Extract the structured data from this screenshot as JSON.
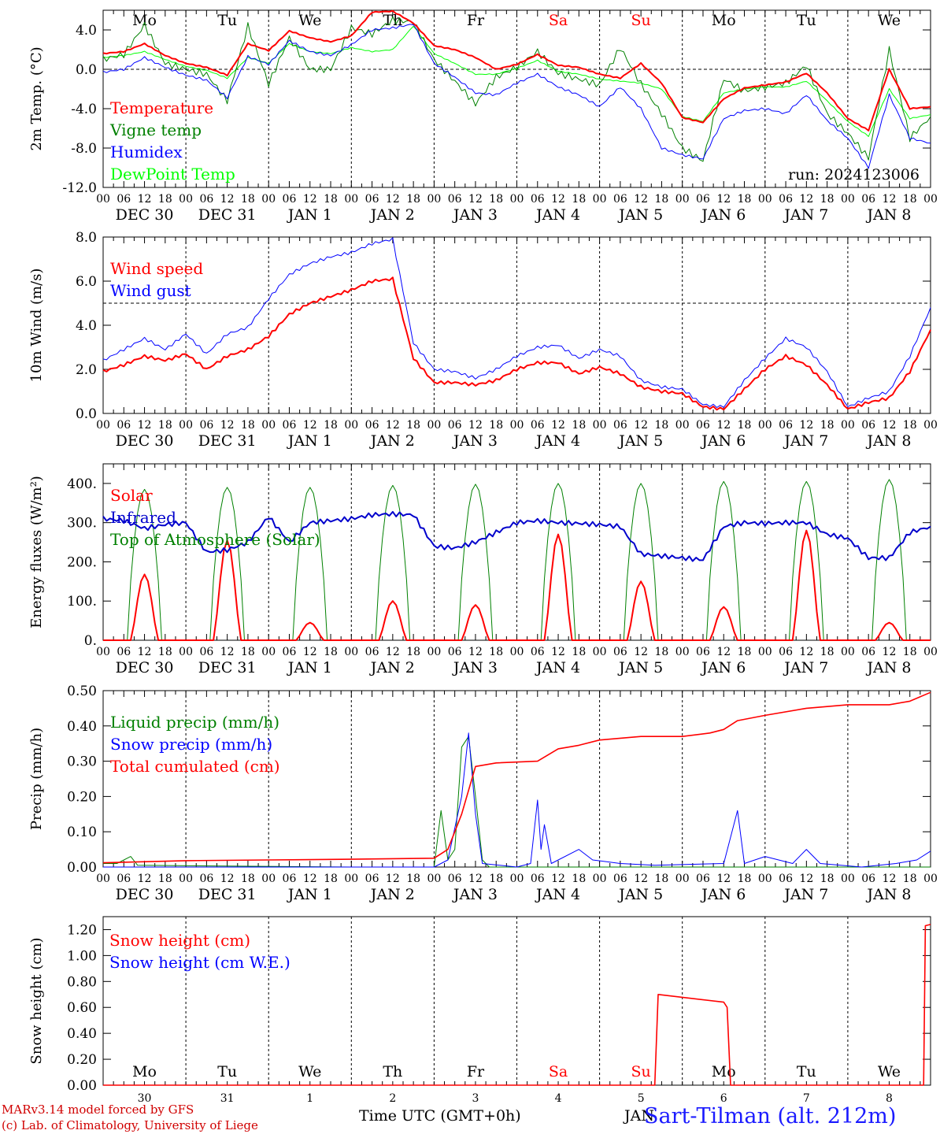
{
  "chart_data": [
    {
      "type": "line",
      "ylabel": "2m Temp. (°C)",
      "ylim": [
        -12,
        6
      ],
      "yticks": [
        4.0,
        0.0,
        -4.0,
        -8.0,
        -12.0
      ],
      "ytick_labels": [
        "4.0",
        "0.0",
        "-4.0",
        "-8.0",
        "-12.0"
      ],
      "ref_line": 0,
      "day_names": [
        "Mo",
        "Tu",
        "We",
        "Th",
        "Fr",
        "Sa",
        "Su",
        "Mo",
        "Tu",
        "We"
      ],
      "day_name_colors": [
        "#000000",
        "#000000",
        "#000000",
        "#000000",
        "#000000",
        "#ff0000",
        "#ff0000",
        "#000000",
        "#000000",
        "#000000"
      ],
      "date_labels": [
        "DEC 30",
        "DEC 31",
        "JAN  1",
        "JAN  2",
        "JAN  3",
        "JAN  4",
        "JAN  5",
        "JAN  6",
        "JAN  7",
        "JAN  8"
      ],
      "run_label": "run: 2024123006",
      "x_hours": [
        0,
        6,
        12,
        18,
        24,
        30,
        36,
        42,
        48,
        54,
        60,
        66,
        72,
        78,
        84,
        90,
        96,
        102,
        108,
        114,
        120,
        126,
        132,
        138,
        144,
        150,
        156,
        162,
        168,
        174,
        180,
        186,
        192,
        198,
        204,
        210,
        216,
        222,
        228,
        234,
        240
      ],
      "series": [
        {
          "name": "Temperature",
          "color": "#ff0000",
          "width": 2,
          "values": [
            1.6,
            1.8,
            2.6,
            1.4,
            0.6,
            0.2,
            -0.6,
            2.6,
            1.9,
            3.9,
            3.2,
            2.8,
            3.4,
            5.8,
            5.9,
            4.7,
            2.4,
            2.0,
            1.2,
            0.0,
            0.5,
            1.5,
            0.4,
            0.2,
            -0.5,
            -0.9,
            0.6,
            -1.4,
            -4.9,
            -5.4,
            -3.0,
            -1.9,
            -1.6,
            -1.3,
            -0.4,
            -2.4,
            -5.0,
            -6.2,
            0.0,
            -4.0,
            -3.8
          ]
        },
        {
          "name": "Vigne temp",
          "color": "#008000",
          "width": 1,
          "values": [
            1.0,
            1.5,
            4.5,
            0.6,
            0.0,
            -0.5,
            -3.2,
            4.4,
            -1.5,
            3.2,
            0.0,
            0.0,
            4.2,
            3.6,
            5.0,
            4.8,
            1.0,
            -1.2,
            -3.5,
            -0.8,
            0.2,
            1.8,
            -0.4,
            -1.0,
            -1.6,
            2.2,
            -1.5,
            -4.5,
            -8.0,
            -9.3,
            -1.0,
            -2.2,
            -1.8,
            -1.4,
            0.4,
            -4.5,
            -6.5,
            -9.0,
            2.0,
            -7.0,
            -4.8
          ]
        },
        {
          "name": "Humidex",
          "color": "#0000ff",
          "width": 1,
          "values": [
            -0.3,
            0.0,
            1.2,
            0.2,
            -0.6,
            -1.1,
            -2.9,
            1.3,
            0.5,
            2.9,
            1.8,
            1.4,
            2.5,
            4.0,
            4.2,
            4.6,
            0.6,
            -0.8,
            -2.4,
            -2.6,
            -1.4,
            -0.5,
            -1.8,
            -2.6,
            -3.8,
            -1.8,
            -4.0,
            -8.0,
            -8.7,
            -9.1,
            -5.0,
            -4.2,
            -4.0,
            -4.5,
            -2.6,
            -5.2,
            -7.0,
            -10.0,
            -2.6,
            -7.0,
            -7.5
          ]
        },
        {
          "name": "DewPoint Temp",
          "color": "#00ff00",
          "width": 1,
          "values": [
            1.2,
            1.4,
            1.8,
            1.0,
            0.3,
            -0.1,
            -0.9,
            1.2,
            0.6,
            2.6,
            1.8,
            1.6,
            2.2,
            1.8,
            2.0,
            4.4,
            1.6,
            0.6,
            -0.5,
            -0.5,
            0.1,
            0.9,
            -0.2,
            -0.5,
            -1.0,
            -1.2,
            -1.4,
            -2.0,
            -4.8,
            -5.3,
            -2.4,
            -2.0,
            -1.8,
            -1.8,
            -1.2,
            -3.2,
            -5.3,
            -6.8,
            -2.0,
            -5.0,
            -4.6
          ]
        }
      ]
    },
    {
      "type": "line",
      "ylabel": "10m Wind (m/s)",
      "ylim": [
        0,
        8
      ],
      "yticks": [
        8.0,
        6.0,
        4.0,
        2.0,
        0.0
      ],
      "ytick_labels": [
        "8.0",
        "6.0",
        "4.0",
        "2.0",
        "0.0"
      ],
      "ref_line": 5,
      "date_labels": [
        "DEC 30",
        "DEC 31",
        "JAN  1",
        "JAN  2",
        "JAN  3",
        "JAN  4",
        "JAN  5",
        "JAN  6",
        "JAN  7",
        "JAN  8"
      ],
      "x_hours": [
        0,
        6,
        12,
        18,
        24,
        30,
        36,
        42,
        48,
        54,
        60,
        66,
        72,
        78,
        84,
        90,
        96,
        102,
        108,
        114,
        120,
        126,
        132,
        138,
        144,
        150,
        156,
        162,
        168,
        174,
        180,
        186,
        192,
        198,
        204,
        210,
        216,
        222,
        228,
        234,
        240
      ],
      "series": [
        {
          "name": "Wind speed",
          "color": "#ff0000",
          "width": 2,
          "values": [
            1.9,
            2.2,
            2.6,
            2.4,
            2.7,
            2.0,
            2.6,
            2.9,
            3.5,
            4.5,
            5.0,
            5.3,
            5.6,
            6.0,
            6.1,
            2.5,
            1.4,
            1.4,
            1.3,
            1.5,
            2.0,
            2.3,
            2.3,
            1.8,
            2.1,
            1.8,
            1.2,
            1.0,
            0.9,
            0.3,
            0.2,
            1.1,
            2.0,
            2.6,
            2.2,
            1.3,
            0.2,
            0.5,
            0.7,
            1.9,
            3.8
          ]
        },
        {
          "name": "Wind gust",
          "color": "#0000ff",
          "width": 1,
          "values": [
            2.4,
            2.9,
            3.4,
            2.9,
            3.6,
            2.7,
            3.6,
            3.9,
            5.2,
            6.3,
            6.8,
            7.1,
            7.3,
            7.7,
            7.9,
            3.2,
            2.0,
            1.9,
            1.6,
            2.0,
            2.6,
            3.0,
            3.1,
            2.5,
            2.9,
            2.6,
            1.5,
            1.2,
            1.1,
            0.4,
            0.3,
            1.5,
            2.5,
            3.4,
            3.0,
            1.9,
            0.3,
            0.7,
            1.0,
            2.6,
            4.8
          ]
        }
      ]
    },
    {
      "type": "line",
      "ylabel": "Energy fluxes (W/m²)",
      "ylim": [
        0,
        450
      ],
      "yticks": [
        400,
        300,
        200,
        100,
        0
      ],
      "ytick_labels": [
        "400.",
        "300.",
        "200.",
        "100.",
        "0."
      ],
      "date_labels": [
        "DEC 30",
        "DEC 31",
        "JAN  1",
        "JAN  2",
        "JAN  3",
        "JAN  4",
        "JAN  5",
        "JAN  6",
        "JAN  7",
        "JAN  8"
      ],
      "solar_peaks": [
        168,
        255,
        45,
        100,
        90,
        270,
        150,
        85,
        280,
        45
      ],
      "toa_peaks": [
        385,
        390,
        390,
        395,
        398,
        400,
        400,
        405,
        405,
        410
      ],
      "infrared_hours": [
        0,
        6,
        12,
        18,
        24,
        30,
        36,
        42,
        48,
        54,
        60,
        66,
        72,
        78,
        84,
        90,
        96,
        102,
        108,
        114,
        120,
        126,
        132,
        138,
        144,
        150,
        156,
        162,
        168,
        174,
        180,
        186,
        192,
        198,
        204,
        210,
        216,
        222,
        228,
        234,
        240
      ],
      "infrared_values": [
        310,
        305,
        285,
        295,
        300,
        225,
        230,
        250,
        315,
        250,
        300,
        305,
        310,
        320,
        322,
        320,
        240,
        235,
        250,
        275,
        300,
        305,
        300,
        298,
        295,
        290,
        220,
        215,
        210,
        205,
        290,
        300,
        298,
        300,
        300,
        270,
        260,
        210,
        210,
        275,
        290
      ],
      "series": [
        {
          "name": "Solar",
          "color": "#ff0000"
        },
        {
          "name": "Infrared",
          "color": "#0000cc"
        },
        {
          "name": "Top of Atmosphere (Solar)",
          "color": "#008000"
        }
      ]
    },
    {
      "type": "line",
      "ylabel": "Precip (mm/h)",
      "ylim": [
        0,
        0.5
      ],
      "yticks": [
        0.5,
        0.4,
        0.3,
        0.2,
        0.1,
        0.0
      ],
      "ytick_labels": [
        "0.50",
        "0.40",
        "0.30",
        "0.20",
        "0.10",
        "0.00"
      ],
      "date_labels": [
        "DEC 30",
        "DEC 31",
        "JAN  1",
        "JAN  2",
        "JAN  3",
        "JAN  4",
        "JAN  5",
        "JAN  6",
        "JAN  7",
        "JAN  8"
      ],
      "series": [
        {
          "name": "Liquid precip (mm/h)",
          "color": "#008000",
          "points": [
            [
              0,
              0.01
            ],
            [
              4,
              0.01
            ],
            [
              8,
              0.03
            ],
            [
              10,
              0.005
            ],
            [
              72,
              0.0
            ],
            [
              96,
              0.0
            ],
            [
              98,
              0.16
            ],
            [
              100,
              0.02
            ],
            [
              102,
              0.05
            ],
            [
              104,
              0.34
            ],
            [
              106,
              0.37
            ],
            [
              108,
              0.2
            ],
            [
              110,
              0.02
            ],
            [
              112,
              0.0
            ],
            [
              240,
              0.0
            ]
          ]
        },
        {
          "name": "Snow precip (mm/h)",
          "color": "#0000ff",
          "points": [
            [
              0,
              0.0
            ],
            [
              96,
              0.0
            ],
            [
              100,
              0.02
            ],
            [
              104,
              0.2
            ],
            [
              106,
              0.38
            ],
            [
              108,
              0.15
            ],
            [
              110,
              0.01
            ],
            [
              120,
              0.0
            ],
            [
              124,
              0.01
            ],
            [
              126,
              0.19
            ],
            [
              127,
              0.05
            ],
            [
              128,
              0.12
            ],
            [
              130,
              0.01
            ],
            [
              138,
              0.05
            ],
            [
              142,
              0.02
            ],
            [
              150,
              0.01
            ],
            [
              160,
              0.005
            ],
            [
              180,
              0.01
            ],
            [
              184,
              0.16
            ],
            [
              186,
              0.01
            ],
            [
              192,
              0.03
            ],
            [
              200,
              0.01
            ],
            [
              204,
              0.05
            ],
            [
              208,
              0.01
            ],
            [
              220,
              0.0
            ],
            [
              230,
              0.01
            ],
            [
              236,
              0.02
            ],
            [
              240,
              0.045
            ]
          ]
        },
        {
          "name": "Total cumulated (cm)",
          "color": "#ff0000",
          "points": [
            [
              0,
              0.012
            ],
            [
              24,
              0.018
            ],
            [
              48,
              0.02
            ],
            [
              72,
              0.022
            ],
            [
              96,
              0.025
            ],
            [
              100,
              0.05
            ],
            [
              104,
              0.15
            ],
            [
              108,
              0.285
            ],
            [
              114,
              0.295
            ],
            [
              126,
              0.3
            ],
            [
              132,
              0.335
            ],
            [
              138,
              0.345
            ],
            [
              144,
              0.36
            ],
            [
              156,
              0.37
            ],
            [
              168,
              0.37
            ],
            [
              176,
              0.38
            ],
            [
              180,
              0.39
            ],
            [
              184,
              0.415
            ],
            [
              192,
              0.43
            ],
            [
              204,
              0.45
            ],
            [
              216,
              0.46
            ],
            [
              228,
              0.46
            ],
            [
              234,
              0.47
            ],
            [
              240,
              0.495
            ]
          ]
        }
      ]
    },
    {
      "type": "line",
      "ylabel": "Snow height (cm)",
      "ylim": [
        0,
        1.3
      ],
      "yticks": [
        1.2,
        1.0,
        0.8,
        0.6,
        0.4,
        0.2,
        0.0
      ],
      "ytick_labels": [
        "1.20",
        "1.00",
        "0.80",
        "0.60",
        "0.40",
        "0.20",
        "0.00"
      ],
      "day_names": [
        "Mo",
        "Tu",
        "We",
        "Th",
        "Fr",
        "Sa",
        "Su",
        "Mo",
        "Tu",
        "We"
      ],
      "day_name_colors": [
        "#000000",
        "#000000",
        "#000000",
        "#000000",
        "#000000",
        "#ff0000",
        "#ff0000",
        "#000000",
        "#000000",
        "#000000"
      ],
      "day_numbers": [
        "30",
        "31",
        "1",
        "2",
        "3",
        "4",
        "5",
        "6",
        "7",
        "8"
      ],
      "series": [
        {
          "name": "Snow height (cm)",
          "color": "#ff0000",
          "points": [
            [
              0,
              0
            ],
            [
              160,
              0
            ],
            [
              161,
              0.7
            ],
            [
              180,
              0.64
            ],
            [
              181,
              0.6
            ],
            [
              182,
              0
            ],
            [
              238,
              0
            ],
            [
              238.5,
              1.23
            ],
            [
              240,
              1.24
            ]
          ]
        },
        {
          "name": "Snow height (cm W.E.)",
          "color": "#0000ff",
          "points": []
        }
      ]
    }
  ],
  "xaxis_title": "Time UTC (GMT+0h)",
  "xaxis_month": "JAN",
  "hour_labels": [
    "00",
    "06",
    "12",
    "18"
  ],
  "hour_label_end": "00",
  "footer": {
    "line1": "MARv3.14 model forced by GFS",
    "line2": "(c) Lab. of Climatology, University of Liege",
    "station": "Sart-Tilman (alt. 212m)"
  }
}
